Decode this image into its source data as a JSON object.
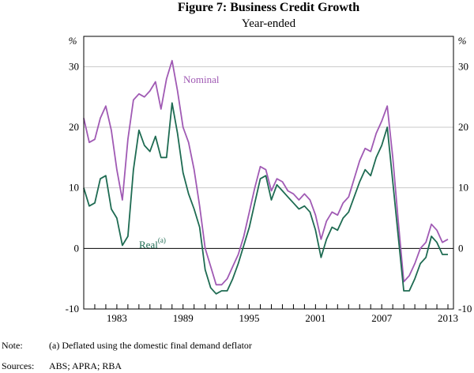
{
  "chart_data": {
    "type": "line",
    "title": "Figure 7: Business Credit Growth",
    "subtitle": "Year-ended",
    "ylabel_left": "%",
    "ylabel_right": "%",
    "ylim": [
      -10,
      35
    ],
    "yticks": [
      -10,
      0,
      10,
      20,
      30
    ],
    "xlim": [
      1980,
      2013.5
    ],
    "xticks": [
      1983,
      1989,
      1995,
      2001,
      2007,
      2013
    ],
    "x": [
      1980.0,
      1980.5,
      1981.0,
      1981.5,
      1982.0,
      1982.5,
      1983.0,
      1983.5,
      1984.0,
      1984.5,
      1985.0,
      1985.5,
      1986.0,
      1986.5,
      1987.0,
      1987.5,
      1988.0,
      1988.5,
      1989.0,
      1989.5,
      1990.0,
      1990.5,
      1991.0,
      1991.5,
      1992.0,
      1992.5,
      1993.0,
      1993.5,
      1994.0,
      1994.5,
      1995.0,
      1995.5,
      1996.0,
      1996.5,
      1997.0,
      1997.5,
      1998.0,
      1998.5,
      1999.0,
      1999.5,
      2000.0,
      2000.5,
      2001.0,
      2001.5,
      2002.0,
      2002.5,
      2003.0,
      2003.5,
      2004.0,
      2004.5,
      2005.0,
      2005.5,
      2006.0,
      2006.5,
      2007.0,
      2007.5,
      2008.0,
      2008.5,
      2009.0,
      2009.5,
      2010.0,
      2010.5,
      2011.0,
      2011.5,
      2012.0,
      2012.5,
      2013.0
    ],
    "series": [
      {
        "name": "Nominal",
        "color": "#a05ab4",
        "values": [
          21.5,
          17.5,
          18.0,
          21.5,
          23.5,
          19.5,
          13.0,
          8.0,
          18.0,
          24.5,
          25.5,
          25.0,
          26.0,
          27.5,
          23.0,
          28.0,
          31.0,
          26.0,
          20.0,
          17.5,
          13.0,
          7.0,
          0.0,
          -3.0,
          -6.0,
          -6.0,
          -5.0,
          -3.0,
          -1.0,
          2.0,
          6.0,
          10.0,
          13.5,
          13.0,
          9.5,
          11.5,
          11.0,
          9.5,
          9.0,
          8.0,
          9.0,
          8.0,
          5.5,
          1.5,
          4.5,
          6.0,
          5.5,
          7.5,
          8.5,
          11.5,
          14.5,
          16.5,
          16.0,
          19.0,
          21.0,
          23.5,
          15.0,
          4.5,
          -5.5,
          -4.5,
          -2.5,
          0.0,
          1.0,
          4.0,
          3.0,
          1.0,
          1.5
        ]
      },
      {
        "name": "Real",
        "sup": "(a)",
        "color": "#1e6b52",
        "values": [
          10.0,
          7.0,
          7.5,
          11.5,
          12.0,
          6.5,
          5.0,
          0.5,
          2.0,
          13.0,
          19.5,
          17.0,
          16.0,
          18.5,
          15.0,
          15.0,
          24.0,
          19.0,
          12.5,
          9.0,
          6.5,
          3.5,
          -3.5,
          -6.5,
          -7.5,
          -7.0,
          -7.0,
          -5.0,
          -2.5,
          0.5,
          3.5,
          7.5,
          11.5,
          12.0,
          8.0,
          10.5,
          9.5,
          8.5,
          7.5,
          6.5,
          7.0,
          6.0,
          3.0,
          -1.5,
          1.5,
          3.5,
          3.0,
          5.0,
          6.0,
          8.5,
          11.0,
          13.0,
          12.0,
          15.0,
          17.0,
          20.0,
          11.0,
          2.0,
          -7.0,
          -7.0,
          -5.0,
          -2.5,
          -1.5,
          2.0,
          1.0,
          -1.0,
          -1.0
        ]
      }
    ],
    "annotations": [
      {
        "text": "Nominal",
        "series": "Nominal"
      },
      {
        "text": "Real",
        "sup": "(a)",
        "series": "Real"
      }
    ]
  },
  "notes": {
    "note_key": "Note:",
    "note_text": "(a) Deflated using the domestic final demand deflator",
    "sources_key": "Sources:",
    "sources_text": "ABS; APRA; RBA"
  }
}
